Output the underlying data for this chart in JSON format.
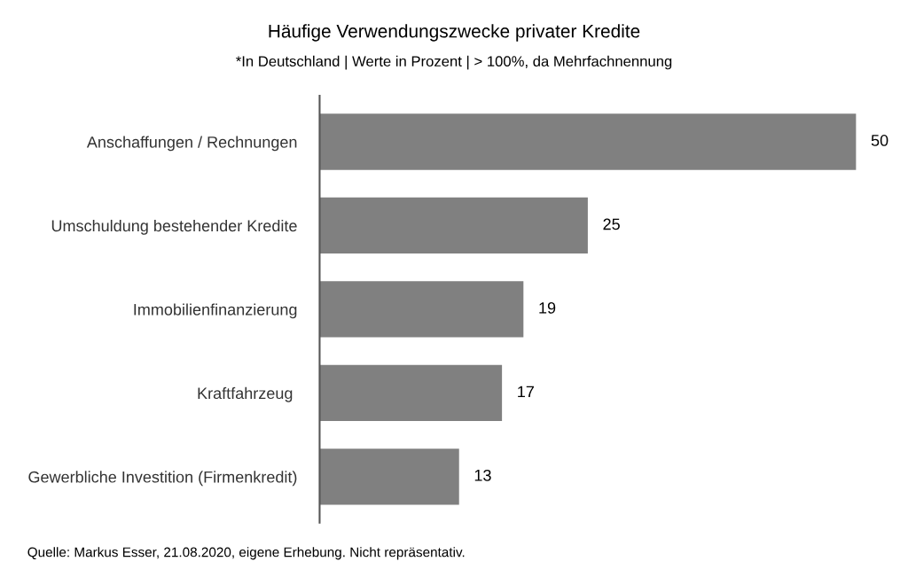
{
  "chart_data": {
    "type": "bar",
    "orientation": "horizontal",
    "title": "Häufige Verwendungszwecke privater Kredite",
    "subtitle": "*In Deutschland | Werte in Prozent | > 100%, da Mehrfachnennung",
    "categories": [
      "Anschaffungen / Rechnungen",
      "Umschuldung bestehender Kredite",
      "Immobilienfinanzierung",
      "Kraftfahrzeug ",
      "Gewerbliche Investition (Firmenkredit)"
    ],
    "values": [
      50,
      25,
      19,
      17,
      13
    ],
    "color": "#808080",
    "data_labels": true,
    "tick_labels": "y",
    "grid": false,
    "legend": false,
    "annotations": [
      "Quelle: Markus Esser, 21.08.2020, eigene Erhebung. Nicht repräsentativ."
    ]
  }
}
